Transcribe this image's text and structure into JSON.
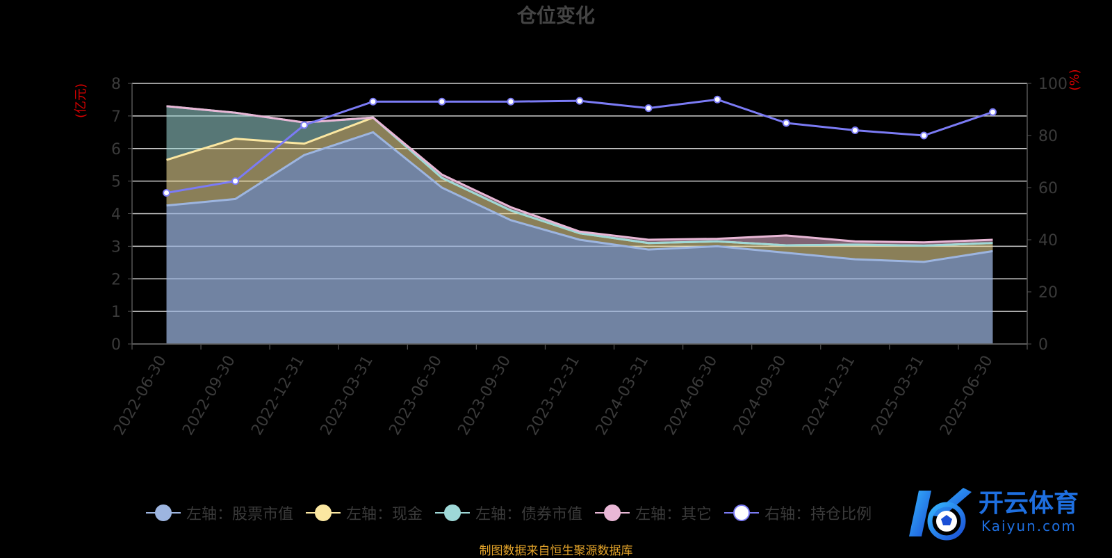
{
  "chart_data": {
    "type": "area",
    "title": "仓位变化",
    "left_axis_label": "(亿元)",
    "right_axis_label": "(%)",
    "x": [
      "2022-06-30",
      "2022-09-30",
      "2022-12-31",
      "2023-03-31",
      "2023-06-30",
      "2023-09-30",
      "2023-12-31",
      "2024-03-31",
      "2024-06-30",
      "2024-09-30",
      "2024-12-31",
      "2025-03-31",
      "2025-06-30"
    ],
    "left_ylim": [
      0,
      8
    ],
    "left_ticks": [
      0,
      1,
      2,
      3,
      4,
      5,
      6,
      7,
      8
    ],
    "right_ylim": [
      0,
      100
    ],
    "right_ticks": [
      0,
      20,
      40,
      60,
      80,
      100
    ],
    "grid": true,
    "series": [
      {
        "name": "左轴：股票市值",
        "axis": "left",
        "color": "#9db5e0",
        "values": [
          4.25,
          4.45,
          5.8,
          6.5,
          4.8,
          3.8,
          3.2,
          2.9,
          3.0,
          2.8,
          2.6,
          2.52,
          2.85
        ]
      },
      {
        "name": "左轴：现金",
        "axis": "left",
        "color": "#fbe7a1",
        "values": [
          1.4,
          1.85,
          0.35,
          0.45,
          0.3,
          0.3,
          0.2,
          0.2,
          0.15,
          0.23,
          0.45,
          0.5,
          0.25
        ]
      },
      {
        "name": "左轴：债券市值",
        "axis": "left",
        "color": "#9ed8d7",
        "values": [
          1.65,
          0.8,
          0.65,
          0.0,
          0.0,
          0.0,
          0.0,
          0.0,
          0.0,
          0.0,
          0.0,
          0.0,
          0.0
        ]
      },
      {
        "name": "左轴：其它",
        "axis": "left",
        "color": "#e9b7d6",
        "values": [
          0.0,
          0.0,
          0.0,
          0.0,
          0.1,
          0.1,
          0.05,
          0.1,
          0.08,
          0.3,
          0.1,
          0.1,
          0.1
        ]
      },
      {
        "name": "右轴：持仓比例",
        "axis": "right",
        "color": "#7b7bf5",
        "values": [
          58,
          62.5,
          84,
          93,
          93,
          93,
          93.3,
          90.5,
          93.8,
          84.8,
          82,
          80,
          89
        ]
      }
    ],
    "legend_position": "bottom"
  },
  "footer": {
    "source_text": "制图数据来自恒生聚源数据库",
    "source_color": "#e4a42a"
  },
  "watermark": {
    "brand_cn": "开云体育",
    "brand_en": "Kaiyun.com",
    "brand_color": "#1e6fe0"
  },
  "colors": {
    "background": "#000000",
    "grid": "#cfcfcf",
    "axis_text": "#3a3a3a",
    "axis_name": "#d40000",
    "title": "#444444"
  }
}
